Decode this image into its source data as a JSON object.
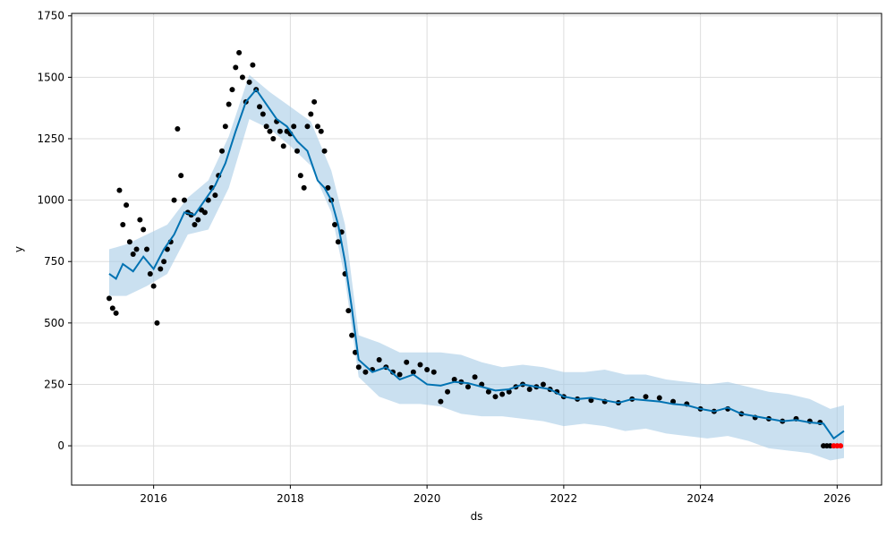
{
  "chart_data": {
    "type": "line",
    "xlabel": "ds",
    "ylabel": "y",
    "xlim": [
      2014.8,
      2026.65
    ],
    "ylim": [
      -160,
      1760
    ],
    "x_ticks": [
      2016,
      2018,
      2020,
      2022,
      2024,
      2026
    ],
    "x_tick_labels": [
      "2016",
      "2018",
      "2020",
      "2022",
      "2024",
      "2026"
    ],
    "y_ticks": [
      0,
      250,
      500,
      750,
      1000,
      1250,
      1500,
      1750
    ],
    "y_tick_labels": [
      "0",
      "250",
      "500",
      "750",
      "1000",
      "1250",
      "1500",
      "1750"
    ],
    "grid": true,
    "colors": {
      "forecast": "#0072B2",
      "interval": "#A6CCE6",
      "observed": "#000000",
      "highlight": "#FF0000"
    },
    "series": [
      {
        "role": "forecast",
        "x": [
          2015.35,
          2015.45,
          2015.55,
          2015.7,
          2015.85,
          2016.0,
          2016.15,
          2016.3,
          2016.45,
          2016.6,
          2016.75,
          2016.9,
          2017.05,
          2017.2,
          2017.35,
          2017.5,
          2017.65,
          2017.8,
          2017.95,
          2018.1,
          2018.25,
          2018.4,
          2018.5,
          2018.6,
          2018.7,
          2018.8,
          2018.9,
          2019.0,
          2019.2,
          2019.4,
          2019.6,
          2019.8,
          2020.0,
          2020.2,
          2020.4,
          2020.6,
          2020.8,
          2021.0,
          2021.2,
          2021.4,
          2021.6,
          2021.8,
          2022.0,
          2022.2,
          2022.4,
          2022.6,
          2022.8,
          2023.0,
          2023.2,
          2023.4,
          2023.6,
          2023.8,
          2024.0,
          2024.2,
          2024.4,
          2024.6,
          2024.8,
          2025.0,
          2025.2,
          2025.4,
          2025.6,
          2025.8,
          2025.95,
          2026.1
        ],
        "y": [
          700,
          680,
          740,
          710,
          770,
          720,
          800,
          860,
          950,
          940,
          1000,
          1060,
          1150,
          1280,
          1400,
          1450,
          1390,
          1330,
          1300,
          1240,
          1200,
          1080,
          1050,
          1000,
          900,
          750,
          560,
          350,
          300,
          320,
          270,
          290,
          250,
          245,
          260,
          255,
          240,
          225,
          230,
          250,
          240,
          230,
          200,
          190,
          195,
          185,
          175,
          190,
          185,
          180,
          170,
          165,
          150,
          140,
          155,
          130,
          120,
          110,
          100,
          105,
          95,
          90,
          30,
          60
        ]
      },
      {
        "role": "interval-upper",
        "x": [
          2015.35,
          2015.6,
          2015.9,
          2016.2,
          2016.5,
          2016.8,
          2017.1,
          2017.4,
          2017.7,
          2018.0,
          2018.3,
          2018.6,
          2018.8,
          2019.0,
          2019.3,
          2019.6,
          2019.9,
          2020.2,
          2020.5,
          2020.8,
          2021.1,
          2021.4,
          2021.7,
          2022.0,
          2022.3,
          2022.6,
          2022.9,
          2023.2,
          2023.5,
          2023.8,
          2024.1,
          2024.4,
          2024.7,
          2025.0,
          2025.3,
          2025.6,
          2025.9,
          2026.1
        ],
        "y": [
          800,
          820,
          860,
          900,
          1010,
          1080,
          1260,
          1510,
          1440,
          1380,
          1320,
          1120,
          900,
          450,
          420,
          380,
          380,
          380,
          370,
          340,
          320,
          330,
          320,
          300,
          300,
          310,
          290,
          290,
          270,
          260,
          250,
          260,
          240,
          220,
          210,
          190,
          150,
          165
        ]
      },
      {
        "role": "interval-lower",
        "x": [
          2015.35,
          2015.6,
          2015.9,
          2016.2,
          2016.5,
          2016.8,
          2017.1,
          2017.4,
          2017.7,
          2018.0,
          2018.3,
          2018.6,
          2018.8,
          2019.0,
          2019.3,
          2019.6,
          2019.9,
          2020.2,
          2020.5,
          2020.8,
          2021.1,
          2021.4,
          2021.7,
          2022.0,
          2022.3,
          2022.6,
          2022.9,
          2023.2,
          2023.5,
          2023.8,
          2024.1,
          2024.4,
          2024.7,
          2025.0,
          2025.3,
          2025.6,
          2025.9,
          2026.1
        ],
        "y": [
          610,
          610,
          650,
          700,
          860,
          880,
          1050,
          1330,
          1290,
          1220,
          1140,
          950,
          680,
          280,
          200,
          170,
          170,
          160,
          130,
          120,
          120,
          110,
          100,
          80,
          90,
          80,
          60,
          70,
          50,
          40,
          30,
          40,
          20,
          -10,
          -20,
          -30,
          -60,
          -50
        ]
      },
      {
        "role": "observed",
        "x": [
          2015.35,
          2015.4,
          2015.45,
          2015.5,
          2015.55,
          2015.6,
          2015.65,
          2015.7,
          2015.75,
          2015.8,
          2015.85,
          2015.9,
          2015.95,
          2016.0,
          2016.05,
          2016.1,
          2016.15,
          2016.2,
          2016.25,
          2016.3,
          2016.35,
          2016.4,
          2016.45,
          2016.5,
          2016.55,
          2016.6,
          2016.65,
          2016.7,
          2016.75,
          2016.8,
          2016.85,
          2016.9,
          2016.95,
          2017.0,
          2017.05,
          2017.1,
          2017.15,
          2017.2,
          2017.25,
          2017.3,
          2017.35,
          2017.4,
          2017.45,
          2017.5,
          2017.55,
          2017.6,
          2017.65,
          2017.7,
          2017.75,
          2017.8,
          2017.85,
          2017.9,
          2017.95,
          2018.0,
          2018.05,
          2018.1,
          2018.15,
          2018.2,
          2018.25,
          2018.3,
          2018.35,
          2018.4,
          2018.45,
          2018.5,
          2018.55,
          2018.6,
          2018.65,
          2018.7,
          2018.75,
          2018.8,
          2018.85,
          2018.9,
          2018.95,
          2019.0,
          2019.1,
          2019.2,
          2019.3,
          2019.4,
          2019.5,
          2019.6,
          2019.7,
          2019.8,
          2019.9,
          2020.0,
          2020.1,
          2020.2,
          2020.3,
          2020.4,
          2020.5,
          2020.6,
          2020.7,
          2020.8,
          2020.9,
          2021.0,
          2021.1,
          2021.2,
          2021.3,
          2021.4,
          2021.5,
          2021.6,
          2021.7,
          2021.8,
          2021.9,
          2022.0,
          2022.2,
          2022.4,
          2022.6,
          2022.8,
          2023.0,
          2023.2,
          2023.4,
          2023.6,
          2023.8,
          2024.0,
          2024.2,
          2024.4,
          2024.6,
          2024.8,
          2025.0,
          2025.2,
          2025.4,
          2025.6,
          2025.75,
          2025.8,
          2025.85,
          2025.9
        ],
        "y": [
          600,
          560,
          540,
          1040,
          900,
          980,
          830,
          780,
          800,
          920,
          880,
          800,
          700,
          650,
          500,
          720,
          750,
          800,
          830,
          1000,
          1290,
          1100,
          1000,
          950,
          940,
          900,
          920,
          960,
          950,
          1000,
          1050,
          1020,
          1100,
          1200,
          1300,
          1390,
          1450,
          1540,
          1600,
          1500,
          1400,
          1480,
          1550,
          1450,
          1380,
          1350,
          1300,
          1280,
          1250,
          1320,
          1280,
          1220,
          1280,
          1270,
          1300,
          1200,
          1100,
          1050,
          1300,
          1350,
          1400,
          1300,
          1280,
          1200,
          1050,
          1000,
          900,
          830,
          870,
          700,
          550,
          450,
          380,
          320,
          300,
          310,
          350,
          320,
          300,
          290,
          340,
          300,
          330,
          310,
          300,
          180,
          220,
          270,
          260,
          240,
          280,
          250,
          220,
          200,
          210,
          220,
          240,
          250,
          230,
          240,
          250,
          230,
          220,
          200,
          190,
          185,
          180,
          175,
          190,
          200,
          195,
          180,
          170,
          150,
          140,
          150,
          130,
          115,
          110,
          100,
          110,
          100,
          95,
          0,
          0,
          0
        ]
      },
      {
        "role": "highlight",
        "x": [
          2025.95,
          2026.0,
          2026.05
        ],
        "y": [
          0,
          0,
          0
        ]
      }
    ]
  }
}
